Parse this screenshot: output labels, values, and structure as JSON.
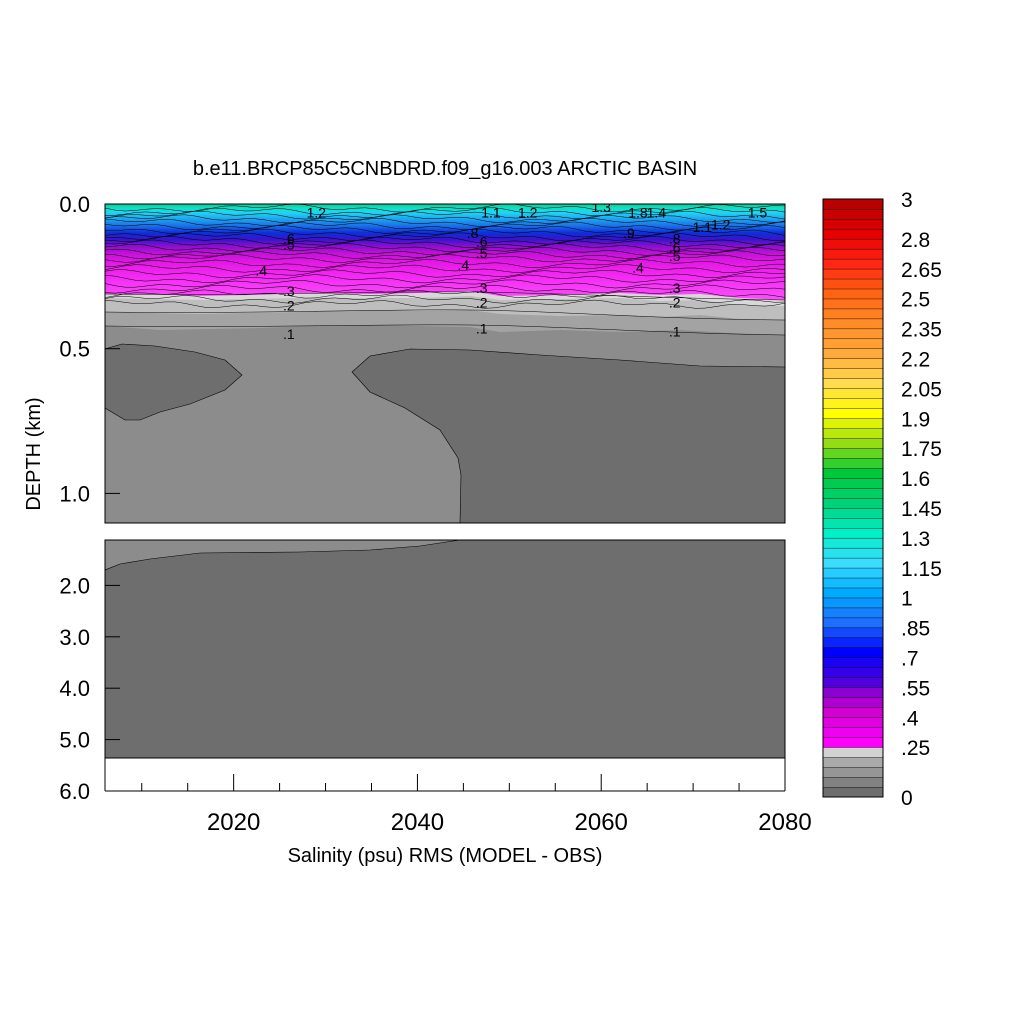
{
  "chart_data": {
    "type": "heatmap",
    "title": "b.e11.BRCP85C5CNBDRD.f09_g16.003 ARCTIC BASIN",
    "xlabel": "Salinity (psu) RMS (MODEL - OBS)",
    "ylabel": "DEPTH (km)",
    "x_range": [
      2006,
      2080
    ],
    "x_ticks": [
      "2020",
      "2040",
      "2060",
      "2080"
    ],
    "y_axis_upper": {
      "range_km": [
        0.0,
        1.1
      ],
      "ticks": [
        "0.0",
        "0.5",
        "1.0"
      ]
    },
    "y_axis_lower": {
      "range_km": [
        1.1,
        6.0
      ],
      "ticks": [
        "2.0",
        "3.0",
        "4.0",
        "5.0",
        "6.0"
      ]
    },
    "colorbar": {
      "min": 0,
      "max": 3,
      "interval": 0.05,
      "tick_labels": [
        "3",
        "2.8",
        "2.65",
        "2.5",
        "2.35",
        "2.2",
        "2.05",
        "1.9",
        "1.75",
        "1.6",
        "1.45",
        "1.3",
        "1.15",
        "1",
        ".85",
        ".7",
        ".55",
        ".4",
        ".25",
        "0"
      ],
      "tick_values": [
        3,
        2.8,
        2.65,
        2.5,
        2.35,
        2.2,
        2.05,
        1.9,
        1.75,
        1.6,
        1.45,
        1.3,
        1.15,
        1.0,
        0.85,
        0.7,
        0.55,
        0.4,
        0.25,
        0
      ]
    },
    "contour_labels": [
      {
        "text": ".1",
        "x": 2026,
        "depth": 0.45
      },
      {
        "text": ".1",
        "x": 2047,
        "depth": 0.43
      },
      {
        "text": ".1",
        "x": 2068,
        "depth": 0.44
      },
      {
        "text": ".2",
        "x": 2026,
        "depth": 0.35
      },
      {
        "text": ".2",
        "x": 2047,
        "depth": 0.34
      },
      {
        "text": ".2",
        "x": 2068,
        "depth": 0.34
      },
      {
        "text": ".3",
        "x": 2026,
        "depth": 0.3
      },
      {
        "text": ".3",
        "x": 2047,
        "depth": 0.29
      },
      {
        "text": ".3",
        "x": 2068,
        "depth": 0.29
      },
      {
        "text": ".4",
        "x": 2023,
        "depth": 0.23
      },
      {
        "text": ".4",
        "x": 2045,
        "depth": 0.21
      },
      {
        "text": ".4",
        "x": 2064,
        "depth": 0.22
      },
      {
        "text": ".5",
        "x": 2026,
        "depth": 0.14
      },
      {
        "text": ".5",
        "x": 2047,
        "depth": 0.17
      },
      {
        "text": ".5",
        "x": 2068,
        "depth": 0.18
      },
      {
        "text": ".6",
        "x": 2026,
        "depth": 0.12
      },
      {
        "text": ".6",
        "x": 2047,
        "depth": 0.13
      },
      {
        "text": ".6",
        "x": 2068,
        "depth": 0.15
      },
      {
        "text": ".8",
        "x": 2046,
        "depth": 0.1
      },
      {
        "text": ".8",
        "x": 2068,
        "depth": 0.12
      },
      {
        "text": ".9",
        "x": 2063,
        "depth": 0.1
      },
      {
        "text": "1.1",
        "x": 2048,
        "depth": 0.03
      },
      {
        "text": "1.1",
        "x": 2071,
        "depth": 0.08
      },
      {
        "text": "1.2",
        "x": 2029,
        "depth": 0.03
      },
      {
        "text": "1.2",
        "x": 2052,
        "depth": 0.03
      },
      {
        "text": "1.2",
        "x": 2073,
        "depth": 0.07
      },
      {
        "text": "1.3",
        "x": 2060,
        "depth": 0.01
      },
      {
        "text": "1.4",
        "x": 2066,
        "depth": 0.03
      },
      {
        "text": "1.5",
        "x": 2077,
        "depth": 0.03
      },
      {
        "text": "1.8",
        "x": 2064,
        "depth": 0.03
      }
    ]
  }
}
